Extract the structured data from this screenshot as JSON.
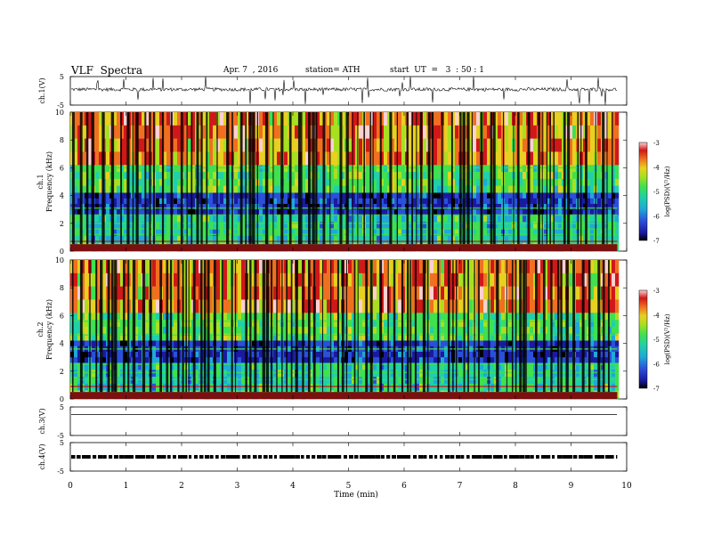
{
  "header": {
    "title": "VLF  Spectra",
    "date": "Apr. 7  , 2016",
    "station": "station= ATH",
    "start": "start  UT  =   3  : 50 : 1"
  },
  "colormap": [
    "#000000",
    "#1a1aa0",
    "#2b50d8",
    "#1fa8d8",
    "#20d0a8",
    "#40e050",
    "#a8e020",
    "#e8d020",
    "#f07020",
    "#d01818",
    "#ffd0d0"
  ],
  "chart_data": [
    {
      "type": "line",
      "id": "ch1",
      "ylabel": "ch.1(V)",
      "ylim": [
        -5,
        5
      ],
      "yticks": [
        "5",
        "-5"
      ],
      "xlim": [
        0,
        10
      ],
      "description_values": {
        "baseline_v": 0.5,
        "noise_amplitude_v": 0.6
      }
    },
    {
      "type": "heatmap",
      "id": "ch1-spectrum",
      "ylabel": "ch.1\nFrequency  (kHz)",
      "ylabel_lines": [
        "ch.1",
        "Frequency  (kHz)"
      ],
      "xlim": [
        0,
        9.83
      ],
      "ylim": [
        0,
        10
      ],
      "yticks": [
        "0",
        "2",
        "4",
        "6",
        "8",
        "10"
      ],
      "colorbar": {
        "label": "log(PSD)(V²/Hz)",
        "ticks": [
          "-3",
          "-4",
          "-5",
          "-6",
          "-7"
        ],
        "range": [
          -7,
          -3
        ]
      }
    },
    {
      "type": "heatmap",
      "id": "ch2-spectrum",
      "ylabel": "ch.2\nFrequency  (kHz)",
      "ylabel_lines": [
        "ch.2",
        "Frequency  (kHz)"
      ],
      "xlim": [
        0,
        9.83
      ],
      "ylim": [
        0,
        10
      ],
      "yticks": [
        "0",
        "2",
        "4",
        "6",
        "8",
        "10"
      ],
      "colorbar": {
        "label": "log(PSD)(V²/Hz)",
        "ticks": [
          "-3",
          "-4",
          "-5",
          "-6",
          "-7"
        ],
        "range": [
          -7,
          -3
        ]
      }
    },
    {
      "type": "line",
      "id": "ch3",
      "ylabel": "ch.3(V)",
      "ylim": [
        -5,
        5
      ],
      "yticks": [
        "5",
        "-5"
      ],
      "xlim": [
        0,
        10
      ],
      "description_values": {
        "baseline_v": 2.3
      }
    },
    {
      "type": "line",
      "id": "ch4",
      "ylabel": "ch.4(V)",
      "ylim": [
        -5,
        5
      ],
      "yticks": [
        "5",
        "-5"
      ],
      "xlim": [
        0,
        10
      ],
      "description_values": {
        "baseline_v": 0.0
      }
    }
  ],
  "xaxis": {
    "label": "Time  (min)",
    "ticks": [
      "0",
      "1",
      "2",
      "3",
      "4",
      "5",
      "6",
      "7",
      "8",
      "9",
      "10"
    ]
  }
}
